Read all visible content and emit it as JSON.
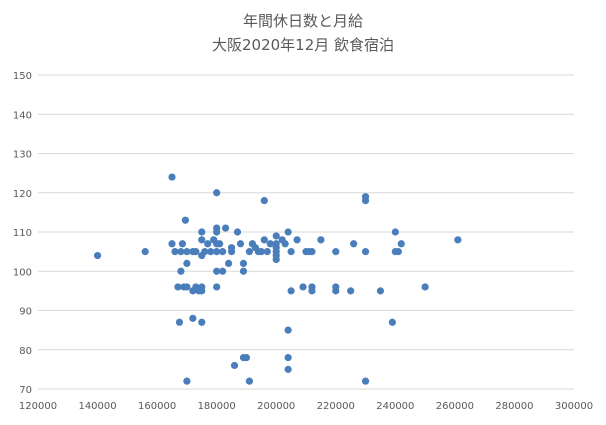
{
  "chart_data": {
    "type": "scatter",
    "title": [
      "年間休日数と月給",
      "大阪2020年12月  飲食宿泊"
    ],
    "xlabel": "",
    "ylabel": "",
    "xlim": [
      120000,
      300000
    ],
    "ylim": [
      70,
      150
    ],
    "xticks": [
      120000,
      140000,
      160000,
      180000,
      200000,
      220000,
      240000,
      260000,
      280000,
      300000
    ],
    "yticks": [
      70,
      80,
      90,
      100,
      110,
      120,
      130,
      140,
      150
    ],
    "grid": "horizontal",
    "legend": "none",
    "marker_color": "#4a7ebb",
    "series": [
      {
        "points": [
          [
            140000,
            104
          ],
          [
            156000,
            105
          ],
          [
            165000,
            124
          ],
          [
            165000,
            107
          ],
          [
            166000,
            105
          ],
          [
            167000,
            96
          ],
          [
            167500,
            87
          ],
          [
            168000,
            105
          ],
          [
            168000,
            100
          ],
          [
            168500,
            107
          ],
          [
            169000,
            96
          ],
          [
            169500,
            113
          ],
          [
            170000,
            102
          ],
          [
            170000,
            105
          ],
          [
            170000,
            96
          ],
          [
            170000,
            72
          ],
          [
            172000,
            88
          ],
          [
            172000,
            95
          ],
          [
            172000,
            105
          ],
          [
            173000,
            105
          ],
          [
            173000,
            96
          ],
          [
            174000,
            95
          ],
          [
            175000,
            110
          ],
          [
            175000,
            108
          ],
          [
            175000,
            104
          ],
          [
            175000,
            96
          ],
          [
            175000,
            95
          ],
          [
            175000,
            87
          ],
          [
            176000,
            105
          ],
          [
            177000,
            107
          ],
          [
            178000,
            105
          ],
          [
            179000,
            108
          ],
          [
            180000,
            120
          ],
          [
            180000,
            111
          ],
          [
            180000,
            110
          ],
          [
            180000,
            107
          ],
          [
            180000,
            105
          ],
          [
            180000,
            100
          ],
          [
            180000,
            96
          ],
          [
            181000,
            107
          ],
          [
            182000,
            105
          ],
          [
            182000,
            100
          ],
          [
            183000,
            111
          ],
          [
            184000,
            102
          ],
          [
            185000,
            106
          ],
          [
            185000,
            105
          ],
          [
            186000,
            76
          ],
          [
            187000,
            110
          ],
          [
            188000,
            107
          ],
          [
            189000,
            100
          ],
          [
            189000,
            102
          ],
          [
            189000,
            78
          ],
          [
            190000,
            78
          ],
          [
            191000,
            105
          ],
          [
            191000,
            72
          ],
          [
            192000,
            107
          ],
          [
            193000,
            106
          ],
          [
            194000,
            105
          ],
          [
            195000,
            105
          ],
          [
            196000,
            118
          ],
          [
            196000,
            108
          ],
          [
            197000,
            105
          ],
          [
            198000,
            107
          ],
          [
            200000,
            109
          ],
          [
            200000,
            107
          ],
          [
            200000,
            106
          ],
          [
            200000,
            105
          ],
          [
            200000,
            104
          ],
          [
            200000,
            103
          ],
          [
            202000,
            108
          ],
          [
            203000,
            107
          ],
          [
            204000,
            110
          ],
          [
            204000,
            85
          ],
          [
            204000,
            78
          ],
          [
            204000,
            75
          ],
          [
            205000,
            105
          ],
          [
            205000,
            95
          ],
          [
            207000,
            108
          ],
          [
            209000,
            96
          ],
          [
            210000,
            105
          ],
          [
            211000,
            105
          ],
          [
            212000,
            105
          ],
          [
            212000,
            96
          ],
          [
            212000,
            95
          ],
          [
            215000,
            108
          ],
          [
            220000,
            105
          ],
          [
            220000,
            96
          ],
          [
            220000,
            95
          ],
          [
            225000,
            95
          ],
          [
            226000,
            107
          ],
          [
            230000,
            119
          ],
          [
            230000,
            118
          ],
          [
            230000,
            105
          ],
          [
            230000,
            72
          ],
          [
            235000,
            95
          ],
          [
            239000,
            87
          ],
          [
            240000,
            110
          ],
          [
            240000,
            105
          ],
          [
            241000,
            105
          ],
          [
            242000,
            107
          ],
          [
            250000,
            96
          ],
          [
            261000,
            108
          ]
        ]
      }
    ]
  }
}
